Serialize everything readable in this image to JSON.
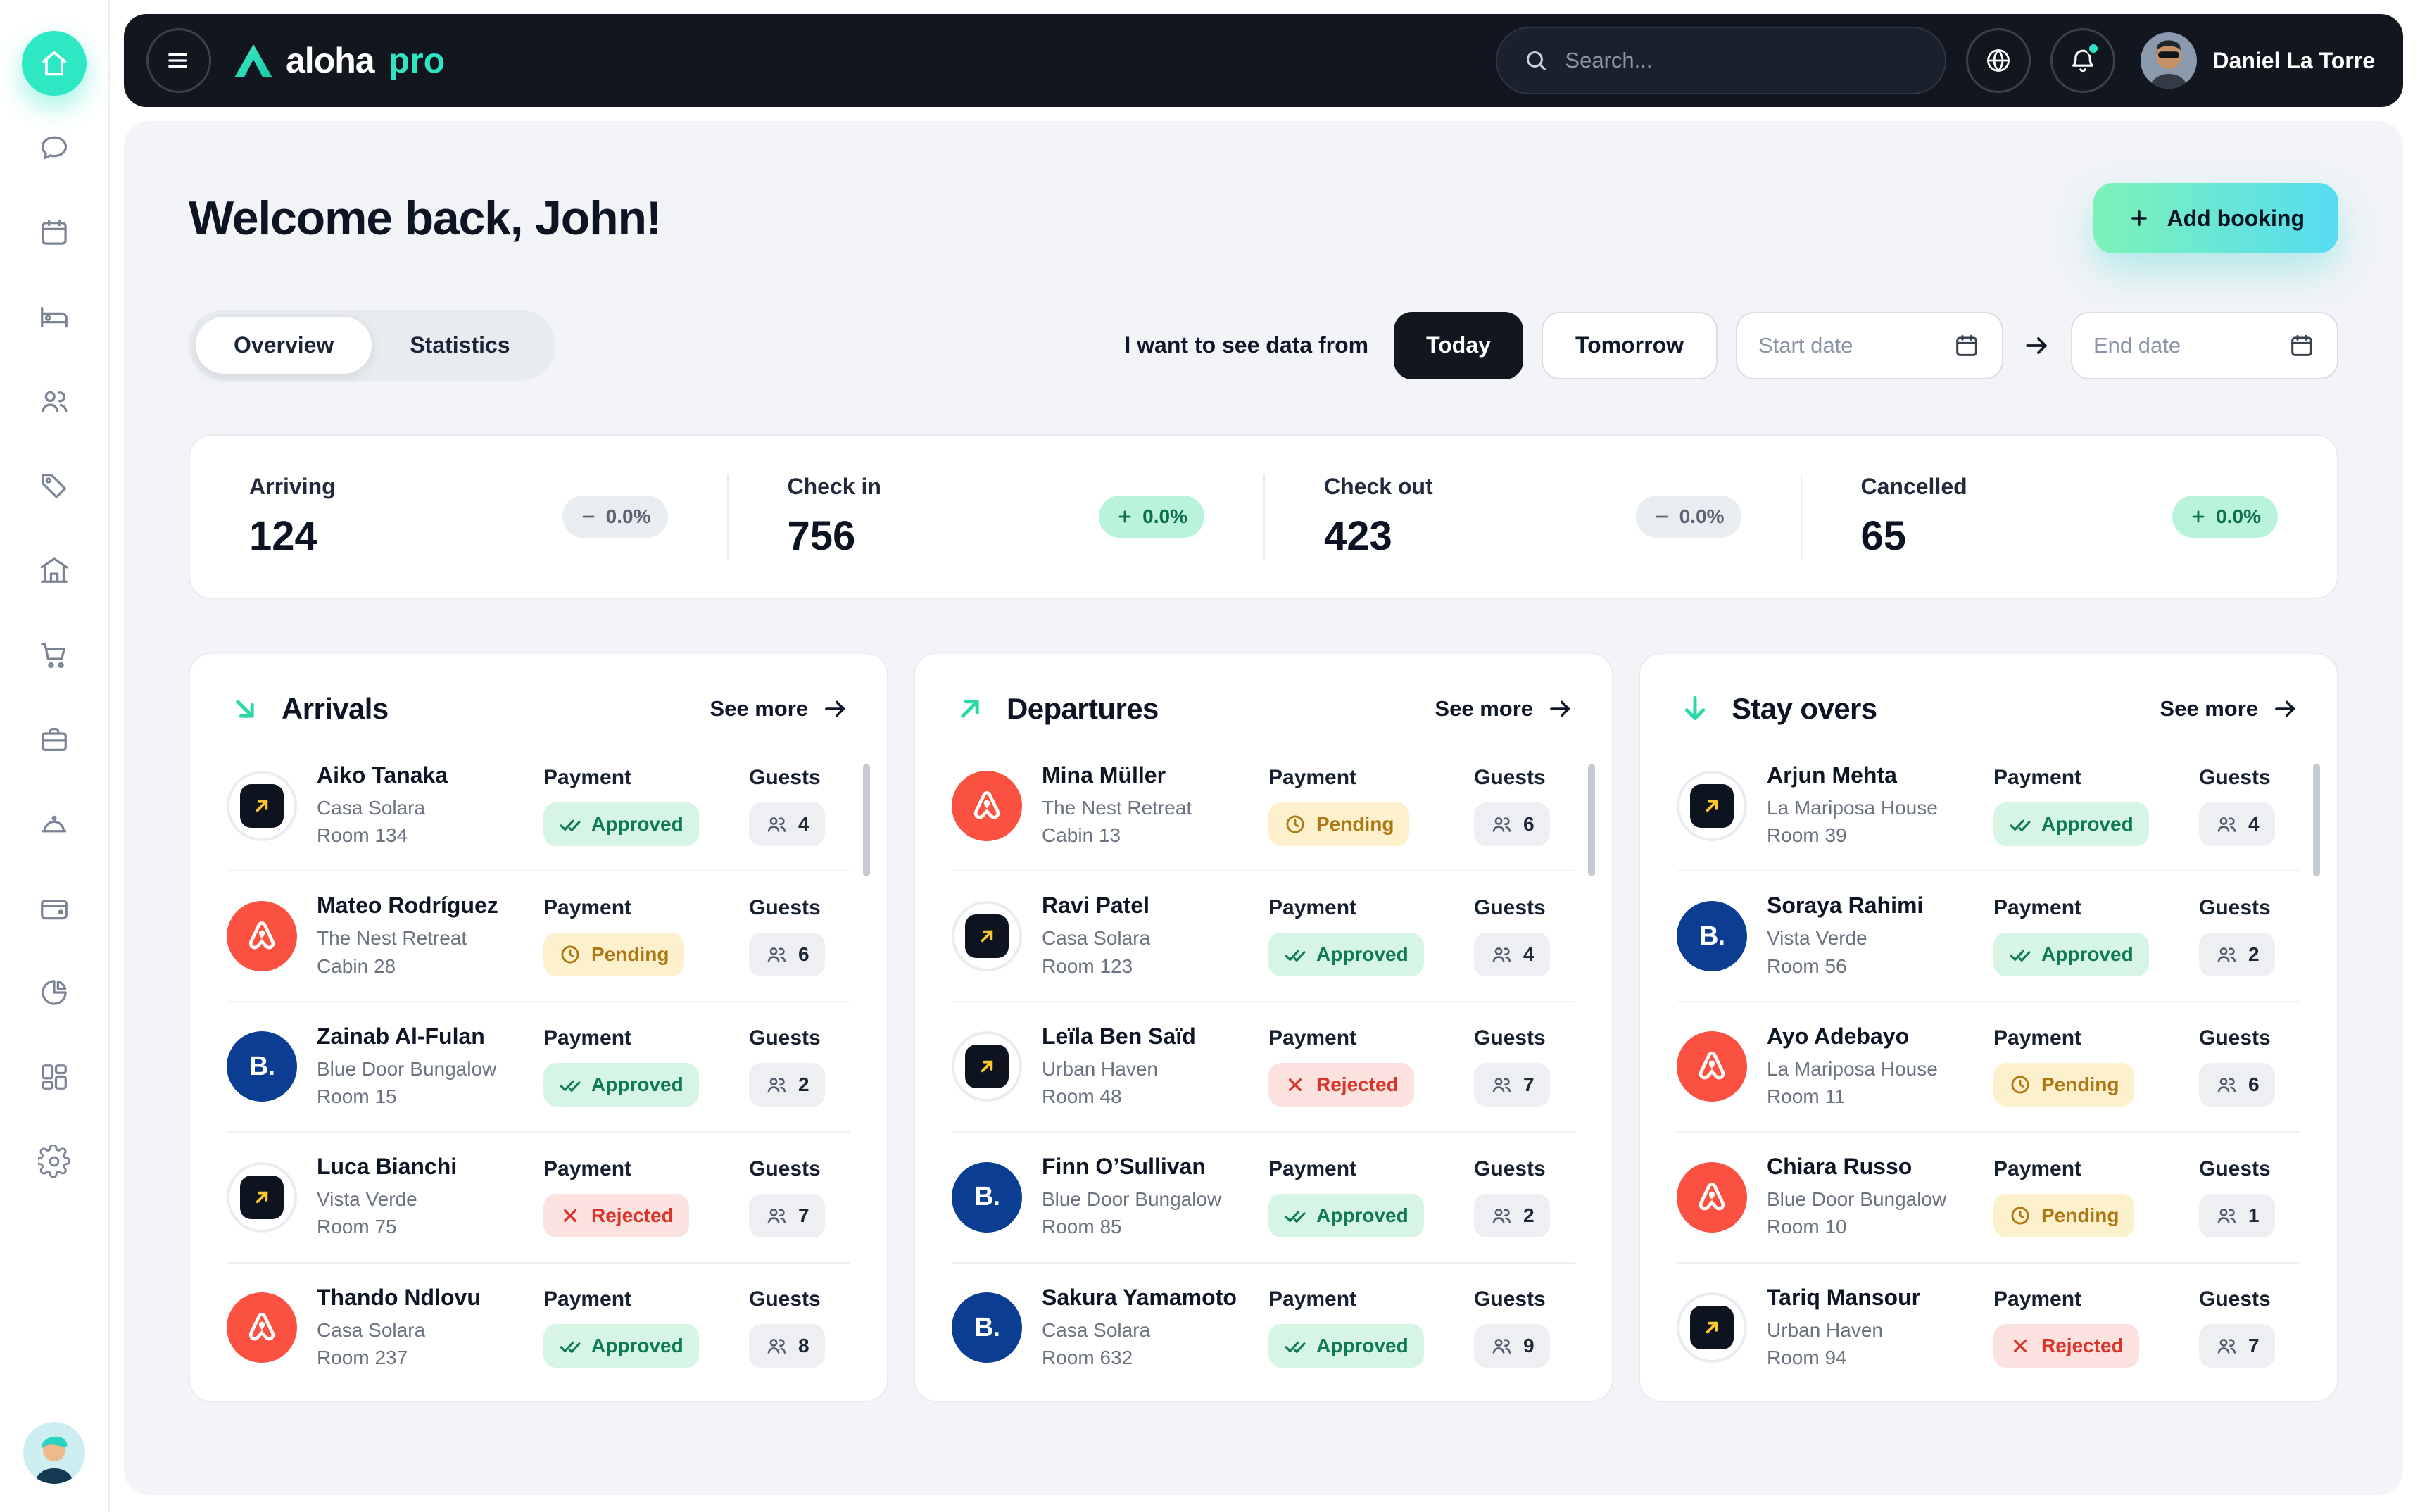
{
  "colors": {
    "accent": "#2fe3c3",
    "header_bg": "#12161f",
    "approved": "#0e7b52",
    "pending": "#ad7712",
    "rejected": "#da352b",
    "add_booking_gradient": [
      "#7df2b6",
      "#55dcf2"
    ]
  },
  "sidebar": {
    "items": [
      {
        "name": "home",
        "icon": "home",
        "active": true
      },
      {
        "name": "messages",
        "icon": "messages",
        "active": false
      },
      {
        "name": "calendar",
        "icon": "calendar",
        "active": false
      },
      {
        "name": "rooms",
        "icon": "rooms",
        "active": false
      },
      {
        "name": "guests",
        "icon": "guests",
        "active": false
      },
      {
        "name": "pricing",
        "icon": "pricing",
        "active": false
      },
      {
        "name": "property",
        "icon": "property",
        "active": false
      },
      {
        "name": "shop",
        "icon": "shop",
        "active": false
      },
      {
        "name": "housekeeping",
        "icon": "toolbox",
        "active": false
      },
      {
        "name": "services",
        "icon": "services",
        "active": false
      },
      {
        "name": "wallet",
        "icon": "wallet",
        "active": false
      },
      {
        "name": "reports",
        "icon": "reports",
        "active": false
      },
      {
        "name": "layout",
        "icon": "layout",
        "active": false
      },
      {
        "name": "settings",
        "icon": "settings",
        "active": false
      }
    ]
  },
  "header": {
    "logo_word": "aloha",
    "logo_suffix": "pro",
    "search_placeholder": "Search...",
    "user_name": "Daniel La Torre"
  },
  "page": {
    "welcome": "Welcome back, John!",
    "add_booking": "Add booking",
    "tabs": [
      "Overview",
      "Statistics"
    ],
    "filter_label": "I want to see data from",
    "today": "Today",
    "tomorrow": "Tomorrow",
    "start_date": "Start date",
    "end_date": "End date"
  },
  "stats": [
    {
      "label": "Arriving",
      "value": "124",
      "delta": "0.0%",
      "direction": "flat"
    },
    {
      "label": "Check in",
      "value": "756",
      "delta": "0.0%",
      "direction": "up"
    },
    {
      "label": "Check out",
      "value": "423",
      "delta": "0.0%",
      "direction": "flat"
    },
    {
      "label": "Cancelled",
      "value": "65",
      "delta": "0.0%",
      "direction": "up"
    }
  ],
  "labels": {
    "payment": "Payment",
    "guests": "Guests",
    "see_more": "See more"
  },
  "columns": [
    {
      "title": "Arrivals",
      "icon": "arrow-down-right",
      "rows": [
        {
          "name": "Aiko Tanaka",
          "property": "Casa Solara",
          "room": "Room 134",
          "brand": "partner",
          "status": "approved",
          "payment_status": "Approved",
          "guests": 4
        },
        {
          "name": "Mateo Rodríguez",
          "property": "The Nest Retreat",
          "room": "Cabin 28",
          "brand": "airbnb",
          "status": "pending",
          "payment_status": "Pending",
          "guests": 6
        },
        {
          "name": "Zainab Al-Fulan",
          "property": "Blue Door Bungalow",
          "room": "Room 15",
          "brand": "booking",
          "status": "approved",
          "payment_status": "Approved",
          "guests": 2
        },
        {
          "name": "Luca Bianchi",
          "property": "Vista Verde",
          "room": "Room 75",
          "brand": "partner",
          "status": "rejected",
          "payment_status": "Rejected",
          "guests": 7
        },
        {
          "name": "Thando Ndlovu",
          "property": "Casa Solara",
          "room": "Room 237",
          "brand": "airbnb",
          "status": "approved",
          "payment_status": "Approved",
          "guests": 8
        }
      ]
    },
    {
      "title": "Departures",
      "icon": "arrow-up-right",
      "rows": [
        {
          "name": "Mina Müller",
          "property": "The Nest Retreat",
          "room": "Cabin 13",
          "brand": "airbnb",
          "status": "pending",
          "payment_status": "Pending",
          "guests": 6
        },
        {
          "name": "Ravi Patel",
          "property": "Casa Solara",
          "room": "Room 123",
          "brand": "partner",
          "status": "approved",
          "payment_status": "Approved",
          "guests": 4
        },
        {
          "name": "Leïla Ben Saïd",
          "property": "Urban Haven",
          "room": "Room 48",
          "brand": "partner",
          "status": "rejected",
          "payment_status": "Rejected",
          "guests": 7
        },
        {
          "name": "Finn O’Sullivan",
          "property": "Blue Door Bungalow",
          "room": "Room 85",
          "brand": "booking",
          "status": "approved",
          "payment_status": "Approved",
          "guests": 2
        },
        {
          "name": "Sakura Yamamoto",
          "property": "Casa Solara",
          "room": "Room 632",
          "brand": "booking",
          "status": "approved",
          "payment_status": "Approved",
          "guests": 9
        }
      ]
    },
    {
      "title": "Stay overs",
      "icon": "arrow-down",
      "rows": [
        {
          "name": "Arjun Mehta",
          "property": "La Mariposa House",
          "room": "Room 39",
          "brand": "partner",
          "status": "approved",
          "payment_status": "Approved",
          "guests": 4
        },
        {
          "name": "Soraya Rahimi",
          "property": "Vista Verde",
          "room": "Room 56",
          "brand": "booking",
          "status": "approved",
          "payment_status": "Approved",
          "guests": 2
        },
        {
          "name": "Ayo Adebayo",
          "property": "La Mariposa House",
          "room": "Room 11",
          "brand": "airbnb",
          "status": "pending",
          "payment_status": "Pending",
          "guests": 6
        },
        {
          "name": "Chiara Russo",
          "property": "Blue Door Bungalow",
          "room": "Room 10",
          "brand": "airbnb",
          "status": "pending",
          "payment_status": "Pending",
          "guests": 1
        },
        {
          "name": "Tariq Mansour",
          "property": "Urban Haven",
          "room": "Room 94",
          "brand": "partner",
          "status": "rejected",
          "payment_status": "Rejected",
          "guests": 7
        }
      ]
    }
  ]
}
